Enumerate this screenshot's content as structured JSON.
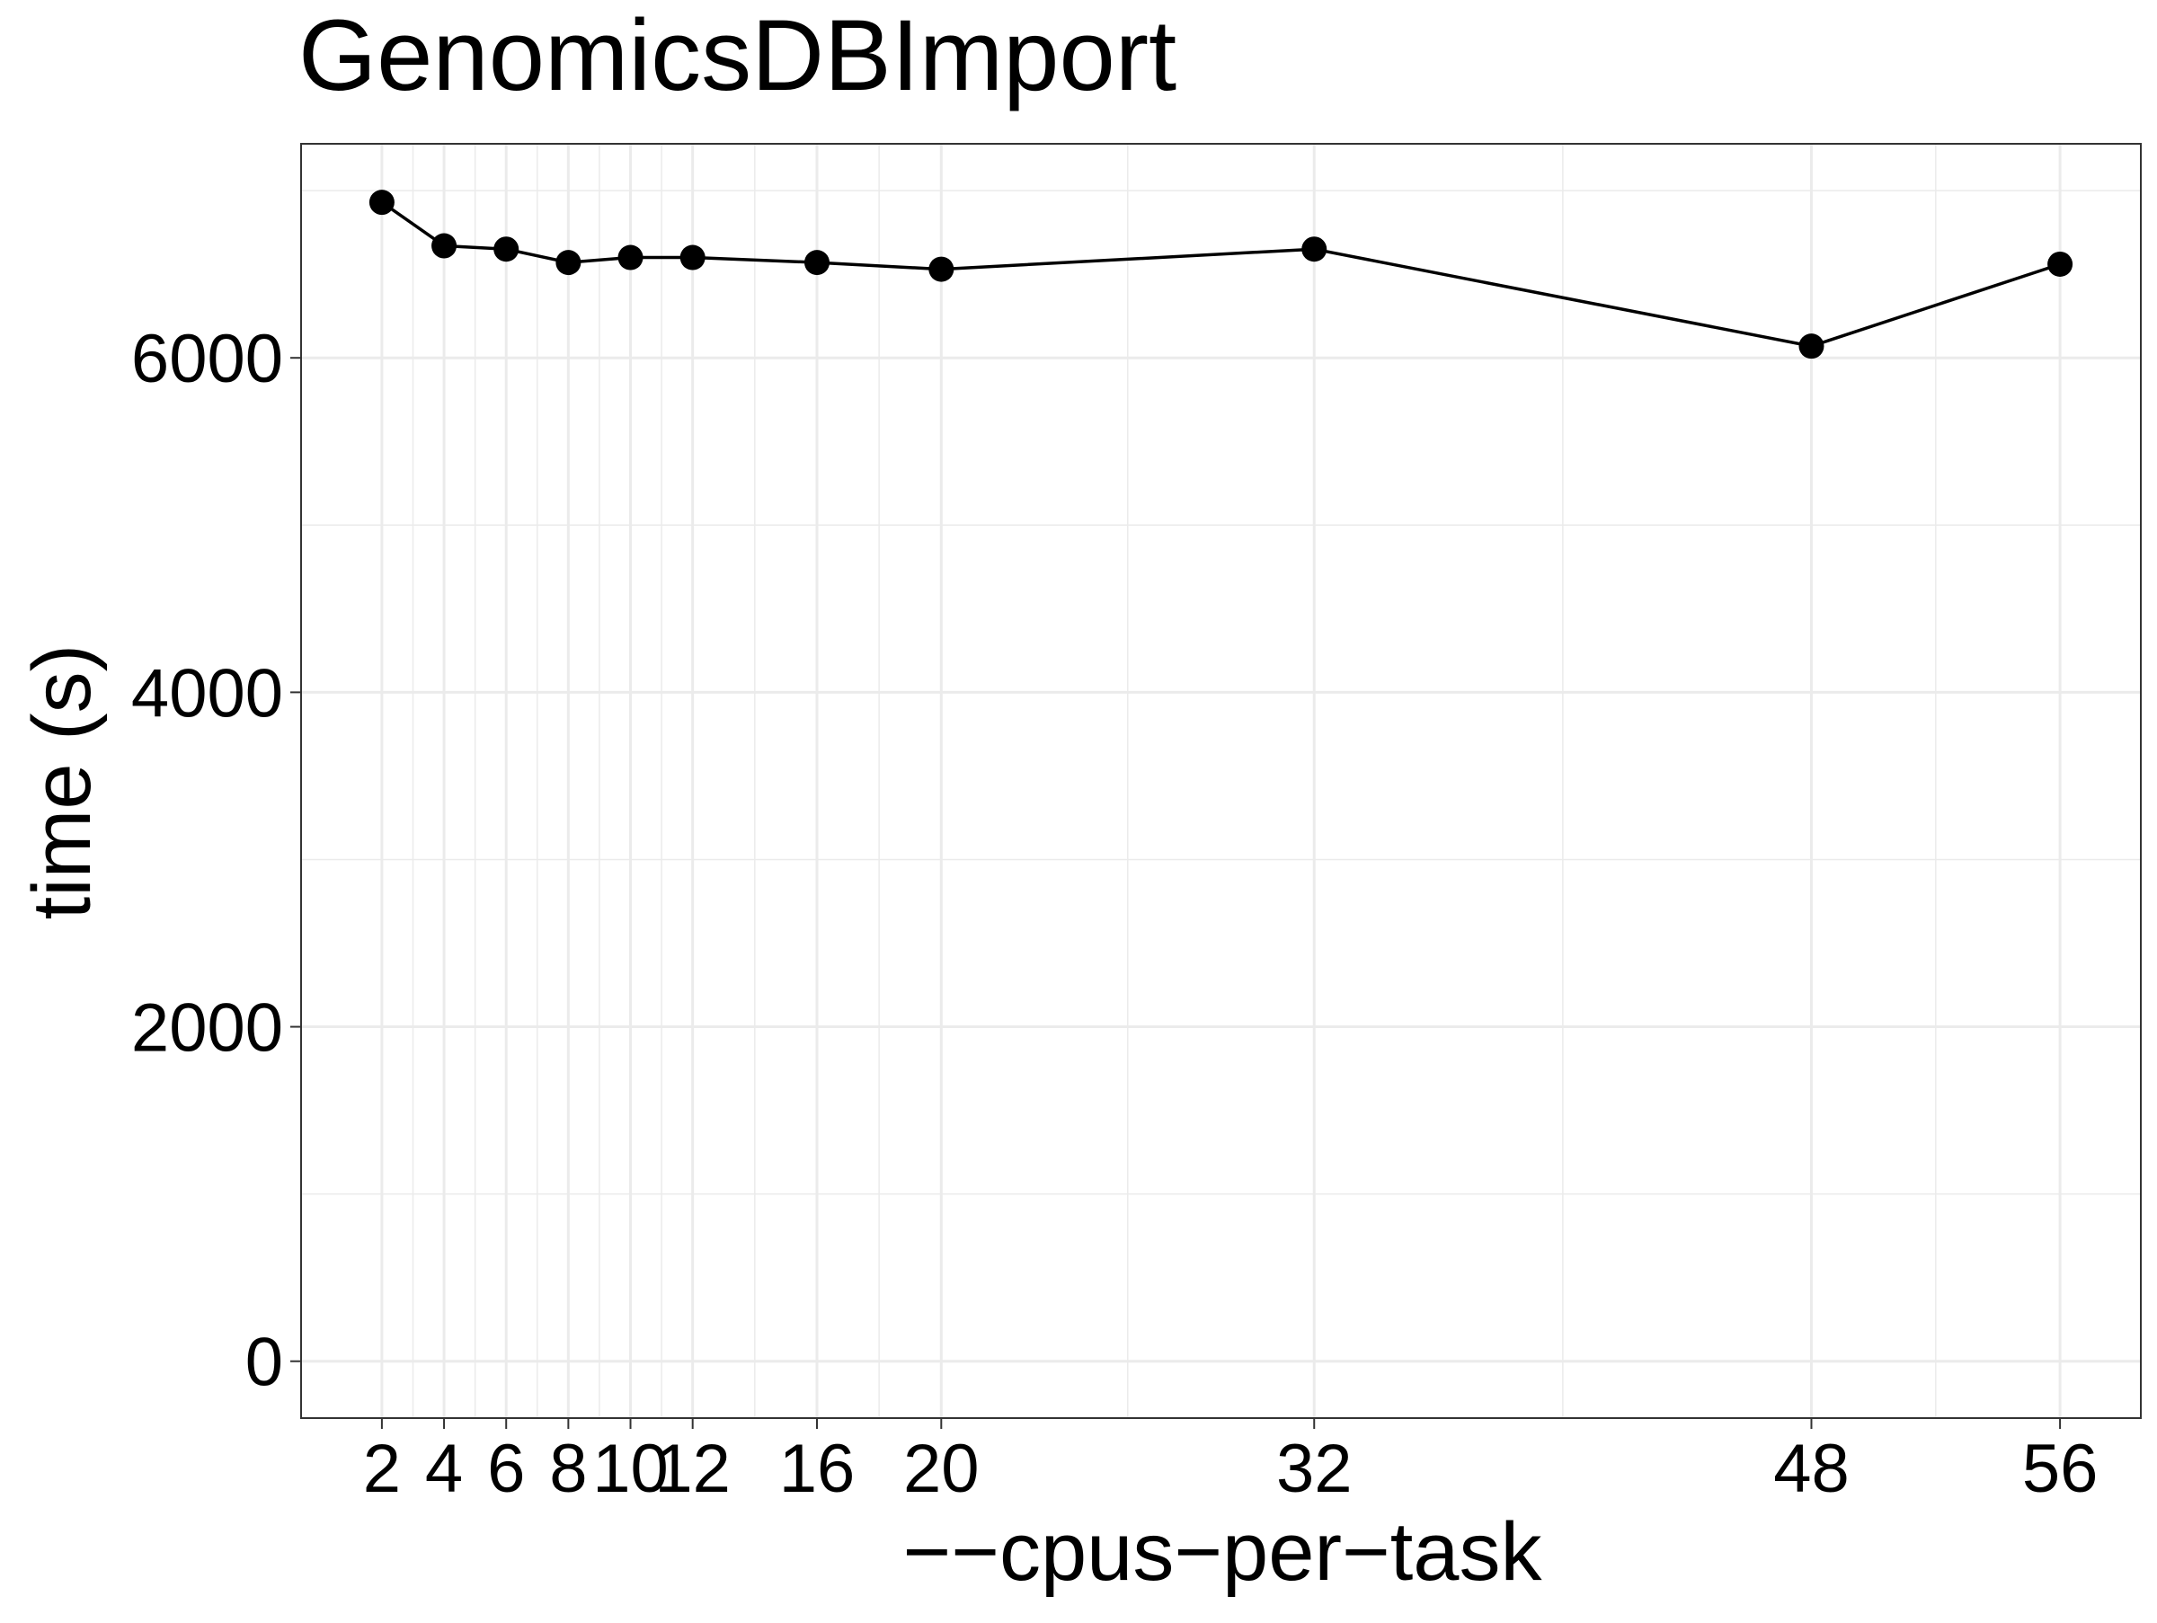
{
  "chart_data": {
    "type": "line",
    "title": "GenomicsDBImport",
    "xlabel": "−−cpus−per−task",
    "ylabel": "time (s)",
    "x": [
      2,
      4,
      6,
      8,
      10,
      12,
      16,
      20,
      32,
      48,
      56
    ],
    "x_tick_labels": [
      "2",
      "4",
      "6",
      "8",
      "10",
      "12",
      "16",
      "20",
      "32",
      "48",
      "56"
    ],
    "series": [
      {
        "values": [
          6930,
          6670,
          6650,
          6570,
          6600,
          6600,
          6570,
          6530,
          6650,
          6070,
          6560
        ]
      }
    ],
    "y_ticks": [
      0,
      2000,
      4000,
      6000
    ],
    "y_tick_labels": [
      "0",
      "2000",
      "4000",
      "6000"
    ],
    "xlim": [
      -0.6,
      58.6
    ],
    "ylim": [
      -340,
      7280
    ],
    "grid": true,
    "legend": "none",
    "colors": {
      "line": "#000000",
      "points": "#000000",
      "grid": "#ebebeb",
      "panel_border": "#333333",
      "background": "#ffffff"
    }
  }
}
